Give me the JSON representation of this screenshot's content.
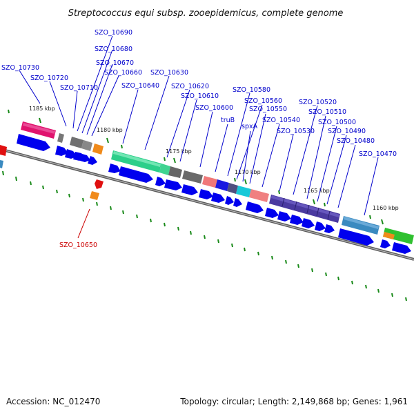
{
  "header": {
    "title": "Streptococcus equi subsp. zooepidemicus, complete genome"
  },
  "footer": {
    "accession": "Accession: NC_012470",
    "summary": "Topology: circular; Length: 2,149,868 bp; Genes: 1,961"
  },
  "scale_labels": [
    "1185 kbp",
    "1180 kbp",
    "1175 kbp",
    "1170 kbp",
    "1165 kbp",
    "1160 kbp"
  ],
  "gene_labels": [
    "SZO_10730",
    "SZO_10720",
    "SZO_10710",
    "SZO_10690",
    "SZO_10680",
    "SZO_10670",
    "SZO_10660",
    "SZO_10640",
    "SZO_10630",
    "SZO_10620",
    "SZO_10610",
    "SZO_10600",
    "SZO_10580",
    "truB",
    "SZO_10560",
    "spxA",
    "SZO_10550",
    "SZO_10540",
    "SZO_10530",
    "SZO_10520",
    "SZO_10510",
    "SZO_10500",
    "SZO_10490",
    "SZO_10480",
    "SZO_10470",
    "SZO_10650"
  ],
  "colors": {
    "backbone": "#7f7f7f",
    "forward_gene": "#0000ee",
    "label_blue": "#0000cc",
    "label_red": "#cc0000",
    "tick": "#1a8a1a"
  }
}
